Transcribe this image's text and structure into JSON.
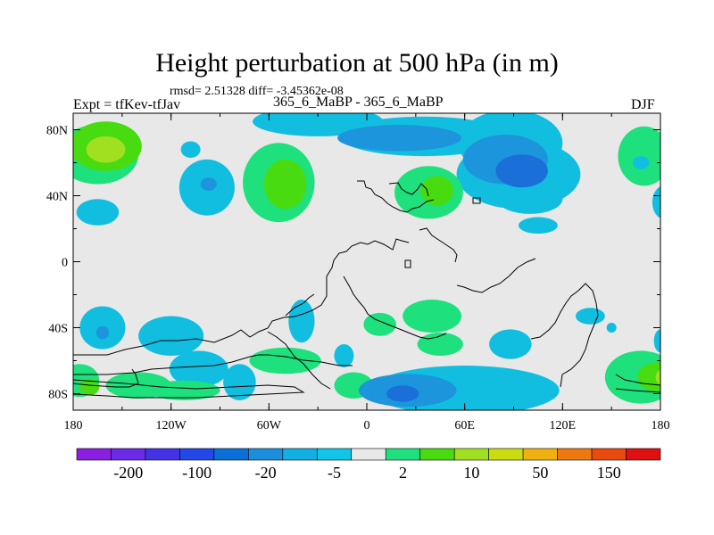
{
  "title": "Height perturbation at 500 hPa (in m)",
  "stats_line": "rmsd= 2.51328  diff= -3.45362e-08",
  "left_label": "Expt = tfKev-tfJav",
  "center_label": "365_6_MaBP - 365_6_MaBP",
  "right_label": "DJF",
  "chart_data": {
    "type": "heatmap",
    "title": "Height perturbation at 500 hPa (in m)",
    "xlim": [
      -180,
      180
    ],
    "ylim": [
      -90,
      90
    ],
    "x_ticks": [
      {
        "value": -180,
        "label": "180"
      },
      {
        "value": -120,
        "label": "120W"
      },
      {
        "value": -60,
        "label": "60W"
      },
      {
        "value": 0,
        "label": "0"
      },
      {
        "value": 60,
        "label": "60E"
      },
      {
        "value": 120,
        "label": "120E"
      },
      {
        "value": 180,
        "label": "180"
      }
    ],
    "y_ticks": [
      {
        "value": 80,
        "label": "80N"
      },
      {
        "value": 40,
        "label": "40N"
      },
      {
        "value": 0,
        "label": "0"
      },
      {
        "value": -40,
        "label": "40S"
      },
      {
        "value": -80,
        "label": "80S"
      }
    ],
    "colorbar": {
      "colors": [
        "#8a1fe0",
        "#6a2ae8",
        "#4433e6",
        "#2248e8",
        "#0a6fd8",
        "#1c8fdc",
        "#12b0e0",
        "#10c6e6",
        "#e8e8e8",
        "#1ee07c",
        "#48dc10",
        "#a0e020",
        "#c8dc10",
        "#f0b010",
        "#f07810",
        "#e84a10",
        "#e01010"
      ],
      "labels": [
        "-200",
        "-100",
        "-20",
        "-5",
        "2",
        "10",
        "50",
        "150"
      ]
    },
    "features": [
      {
        "lon": -165,
        "lat": 65,
        "rx": 25,
        "ry": 18,
        "level": 1
      },
      {
        "lon": -160,
        "lat": 70,
        "rx": 22,
        "ry": 15,
        "level": 2
      },
      {
        "lon": -160,
        "lat": 68,
        "rx": 12,
        "ry": 8,
        "level": 3
      },
      {
        "lon": -180,
        "lat": 66,
        "rx": 12,
        "ry": 14,
        "level": 1
      },
      {
        "lon": -98,
        "lat": 45,
        "rx": 17,
        "ry": 17,
        "level": -1
      },
      {
        "lon": -97,
        "lat": 47,
        "rx": 5,
        "ry": 4,
        "level": -2
      },
      {
        "lon": -165,
        "lat": 30,
        "rx": 13,
        "ry": 8,
        "level": -1
      },
      {
        "lon": -54,
        "lat": 48,
        "rx": 22,
        "ry": 24,
        "level": 1
      },
      {
        "lon": -50,
        "lat": 47,
        "rx": 13,
        "ry": 15,
        "level": 2
      },
      {
        "lon": -108,
        "lat": 68,
        "rx": 6,
        "ry": 5,
        "level": -1
      },
      {
        "lon": -30,
        "lat": 85,
        "rx": 40,
        "ry": 9,
        "level": -1
      },
      {
        "lon": 35,
        "lat": 76,
        "rx": 52,
        "ry": 12,
        "level": -1
      },
      {
        "lon": 88,
        "lat": 72,
        "rx": 32,
        "ry": 20,
        "level": -1
      },
      {
        "lon": 93,
        "lat": 53,
        "rx": 38,
        "ry": 21,
        "level": -1
      },
      {
        "lon": 100,
        "lat": 38,
        "rx": 20,
        "ry": 9,
        "level": -1
      },
      {
        "lon": 20,
        "lat": 75,
        "rx": 38,
        "ry": 8,
        "level": -2
      },
      {
        "lon": 85,
        "lat": 62,
        "rx": 26,
        "ry": 15,
        "level": -2
      },
      {
        "lon": 95,
        "lat": 55,
        "rx": 16,
        "ry": 10,
        "level": -3
      },
      {
        "lon": 38,
        "lat": 42,
        "rx": 21,
        "ry": 16,
        "level": 1
      },
      {
        "lon": 43,
        "lat": 43,
        "rx": 10,
        "ry": 9,
        "level": 2
      },
      {
        "lon": 170,
        "lat": 64,
        "rx": 16,
        "ry": 18,
        "level": 1
      },
      {
        "lon": 168,
        "lat": 60,
        "rx": 5,
        "ry": 4,
        "level": -1
      },
      {
        "lon": 182,
        "lat": 36,
        "rx": 7,
        "ry": 10,
        "level": -1
      },
      {
        "lon": 105,
        "lat": 22,
        "rx": 12,
        "ry": 5,
        "level": -1
      },
      {
        "lon": -162,
        "lat": -40,
        "rx": 14,
        "ry": 13,
        "level": -1
      },
      {
        "lon": -162,
        "lat": -43,
        "rx": 4,
        "ry": 4,
        "level": -2
      },
      {
        "lon": -120,
        "lat": -45,
        "rx": 20,
        "ry": 12,
        "level": -1
      },
      {
        "lon": -176,
        "lat": -72,
        "rx": 12,
        "ry": 10,
        "level": 1
      },
      {
        "lon": -170,
        "lat": -76,
        "rx": 6,
        "ry": 5,
        "level": 2
      },
      {
        "lon": -140,
        "lat": -75,
        "rx": 20,
        "ry": 8,
        "level": 1
      },
      {
        "lon": -103,
        "lat": -65,
        "rx": 18,
        "ry": 11,
        "level": -1
      },
      {
        "lon": -78,
        "lat": -73,
        "rx": 10,
        "ry": 11,
        "level": -1
      },
      {
        "lon": -112,
        "lat": -78,
        "rx": 22,
        "ry": 6,
        "level": 1
      },
      {
        "lon": -40,
        "lat": -36,
        "rx": 8,
        "ry": 13,
        "level": -1
      },
      {
        "lon": -50,
        "lat": -60,
        "rx": 22,
        "ry": 8,
        "level": 1
      },
      {
        "lon": -14,
        "lat": -57,
        "rx": 6,
        "ry": 7,
        "level": -1
      },
      {
        "lon": -8,
        "lat": -75,
        "rx": 12,
        "ry": 8,
        "level": 1
      },
      {
        "lon": 8,
        "lat": -38,
        "rx": 10,
        "ry": 7,
        "level": 1
      },
      {
        "lon": 40,
        "lat": -33,
        "rx": 18,
        "ry": 10,
        "level": 1
      },
      {
        "lon": 45,
        "lat": -50,
        "rx": 14,
        "ry": 7,
        "level": 1
      },
      {
        "lon": 88,
        "lat": -50,
        "rx": 13,
        "ry": 9,
        "level": -1
      },
      {
        "lon": 60,
        "lat": -78,
        "rx": 58,
        "ry": 15,
        "level": -1
      },
      {
        "lon": 25,
        "lat": -78,
        "rx": 30,
        "ry": 10,
        "level": -2
      },
      {
        "lon": 22,
        "lat": -80,
        "rx": 10,
        "ry": 5,
        "level": -3
      },
      {
        "lon": 137,
        "lat": -33,
        "rx": 9,
        "ry": 5,
        "level": -1
      },
      {
        "lon": 150,
        "lat": -40,
        "rx": 3,
        "ry": 3,
        "level": -1
      },
      {
        "lon": 168,
        "lat": -70,
        "rx": 22,
        "ry": 16,
        "level": 1
      },
      {
        "lon": 178,
        "lat": -70,
        "rx": 12,
        "ry": 9,
        "level": 2
      },
      {
        "lon": 185,
        "lat": -70,
        "rx": 8,
        "ry": 6,
        "level": 3
      },
      {
        "lon": 180,
        "lat": -48,
        "rx": 4,
        "ry": 7,
        "level": -1
      }
    ]
  }
}
